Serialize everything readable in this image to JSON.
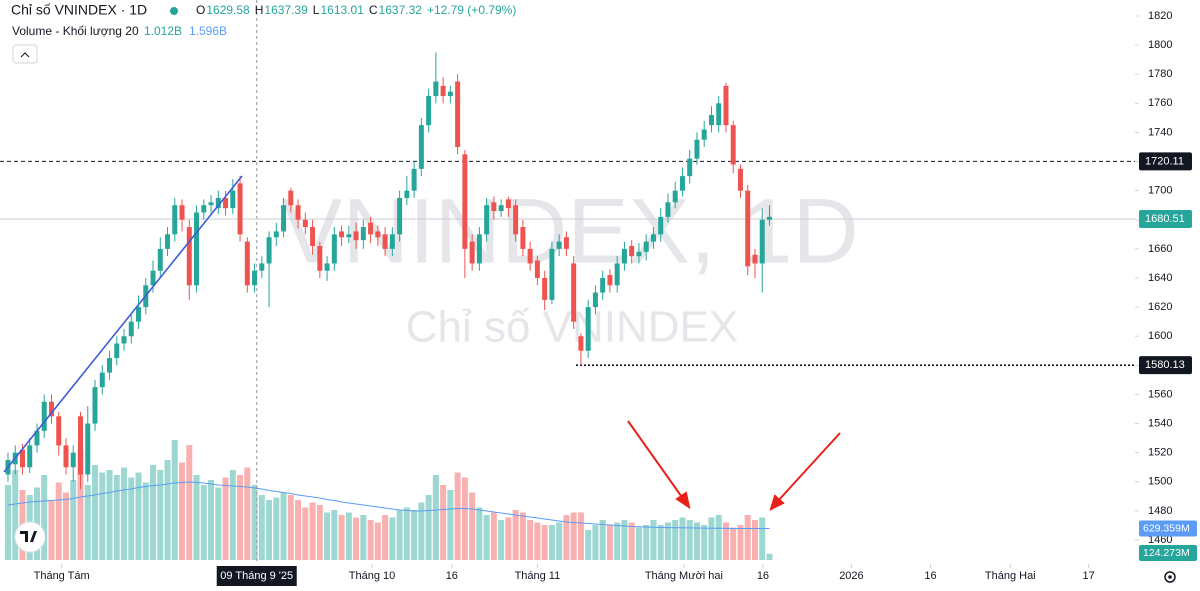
{
  "header": {
    "symbol": "Chỉ số VNINDEX · 1D",
    "ohlc": [
      {
        "label": "O",
        "value": 1629.58
      },
      {
        "label": "H",
        "value": 1637.39
      },
      {
        "label": "L",
        "value": 1613.01
      },
      {
        "label": "C",
        "value": 1637.32
      }
    ],
    "change": "+12.79 (+0.79%)",
    "volume_title": "Volume - Khối lượng 20",
    "volume_values": [
      "1.012B",
      "1.596B"
    ]
  },
  "watermark": [
    "VNINDEX, 1D",
    "Chỉ số VNINDEX"
  ],
  "chart_data": {
    "type": "candlestick",
    "up_color": "#26a69a",
    "down_color": "#ef5350",
    "open": [
      1505,
      1512,
      1522,
      1510,
      1525,
      1535,
      1555,
      1545,
      1525,
      1510,
      1545,
      1505,
      1540,
      1565,
      1575,
      1585,
      1595,
      1600,
      1610,
      1620,
      1635,
      1645,
      1660,
      1670,
      1690,
      1675,
      1635,
      1685,
      1690,
      1688,
      1695,
      1688,
      1705,
      1665,
      1635,
      1645,
      1650,
      1668,
      1672,
      1700,
      1690,
      1680,
      1675,
      1662,
      1645,
      1650,
      1672,
      1668,
      1672,
      1666,
      1678,
      1672,
      1670,
      1660,
      1670,
      1695,
      1700,
      1715,
      1745,
      1765,
      1772,
      1765,
      1775,
      1725,
      1665,
      1650,
      1670,
      1692,
      1686,
      1694,
      1690,
      1675,
      1660,
      1652,
      1640,
      1625,
      1660,
      1668,
      1650,
      1600,
      1590,
      1620,
      1630,
      1642,
      1635,
      1650,
      1662,
      1655,
      1658,
      1665,
      1670,
      1682,
      1692,
      1700,
      1710,
      1722,
      1735,
      1745,
      1745,
      1772,
      1745,
      1715,
      1700,
      1656,
      1650,
      1680
    ],
    "high": [
      1520,
      1525,
      1526,
      1530,
      1540,
      1560,
      1560,
      1548,
      1530,
      1525,
      1548,
      1552,
      1570,
      1580,
      1590,
      1600,
      1605,
      1615,
      1628,
      1640,
      1652,
      1668,
      1675,
      1695,
      1694,
      1680,
      1690,
      1694,
      1697,
      1700,
      1700,
      1708,
      1710,
      1668,
      1650,
      1655,
      1672,
      1678,
      1695,
      1702,
      1694,
      1685,
      1680,
      1665,
      1655,
      1675,
      1676,
      1676,
      1678,
      1680,
      1682,
      1676,
      1675,
      1675,
      1700,
      1710,
      1720,
      1750,
      1770,
      1795,
      1778,
      1772,
      1780,
      1728,
      1670,
      1675,
      1695,
      1696,
      1694,
      1696,
      1694,
      1680,
      1665,
      1655,
      1645,
      1665,
      1670,
      1672,
      1655,
      1602,
      1625,
      1635,
      1645,
      1646,
      1655,
      1665,
      1666,
      1664,
      1670,
      1675,
      1688,
      1698,
      1706,
      1716,
      1728,
      1740,
      1748,
      1758,
      1765,
      1774,
      1748,
      1718,
      1704,
      1660,
      1688,
      1690
    ],
    "low": [
      1500,
      1505,
      1505,
      1506,
      1520,
      1530,
      1540,
      1518,
      1505,
      1500,
      1495,
      1500,
      1535,
      1560,
      1570,
      1580,
      1590,
      1595,
      1605,
      1615,
      1630,
      1640,
      1655,
      1665,
      1672,
      1625,
      1630,
      1680,
      1685,
      1684,
      1683,
      1684,
      1665,
      1630,
      1630,
      1640,
      1620,
      1662,
      1668,
      1685,
      1674,
      1670,
      1656,
      1640,
      1638,
      1645,
      1662,
      1664,
      1660,
      1660,
      1664,
      1662,
      1655,
      1655,
      1665,
      1690,
      1695,
      1710,
      1740,
      1760,
      1760,
      1760,
      1725,
      1640,
      1645,
      1645,
      1665,
      1680,
      1682,
      1682,
      1665,
      1655,
      1645,
      1635,
      1618,
      1622,
      1655,
      1655,
      1605,
      1580,
      1585,
      1615,
      1625,
      1630,
      1630,
      1645,
      1650,
      1650,
      1652,
      1660,
      1665,
      1678,
      1688,
      1696,
      1705,
      1718,
      1730,
      1740,
      1740,
      1740,
      1712,
      1695,
      1642,
      1640,
      1630,
      1676
    ],
    "close": [
      1515,
      1520,
      1510,
      1525,
      1535,
      1555,
      1545,
      1525,
      1510,
      1520,
      1505,
      1540,
      1565,
      1575,
      1585,
      1595,
      1600,
      1610,
      1620,
      1635,
      1645,
      1660,
      1670,
      1690,
      1680,
      1635,
      1685,
      1690,
      1692,
      1695,
      1688,
      1700,
      1670,
      1635,
      1645,
      1650,
      1668,
      1672,
      1690,
      1690,
      1680,
      1675,
      1662,
      1645,
      1650,
      1670,
      1668,
      1670,
      1666,
      1675,
      1670,
      1668,
      1660,
      1670,
      1695,
      1700,
      1715,
      1745,
      1765,
      1775,
      1765,
      1768,
      1730,
      1660,
      1650,
      1670,
      1690,
      1686,
      1690,
      1688,
      1670,
      1660,
      1650,
      1640,
      1625,
      1660,
      1665,
      1660,
      1610,
      1590,
      1620,
      1630,
      1640,
      1635,
      1650,
      1660,
      1655,
      1658,
      1665,
      1670,
      1682,
      1692,
      1700,
      1710,
      1722,
      1735,
      1742,
      1752,
      1760,
      1745,
      1718,
      1700,
      1648,
      1650,
      1680,
      1682
    ],
    "volume": [
      1500,
      1800,
      1400,
      1300,
      1450,
      1700,
      1200,
      1550,
      1350,
      1600,
      2200,
      1500,
      1900,
      1750,
      1800,
      1700,
      1850,
      1650,
      1750,
      1550,
      1900,
      1800,
      2000,
      2400,
      1950,
      2300,
      1700,
      1500,
      1600,
      1450,
      1650,
      1800,
      1700,
      1850,
      1500,
      1300,
      1200,
      1250,
      1350,
      1300,
      1200,
      1050,
      1150,
      1100,
      950,
      1000,
      900,
      950,
      850,
      900,
      800,
      750,
      900,
      850,
      1000,
      1050,
      1000,
      1150,
      1300,
      1700,
      1500,
      1400,
      1750,
      1650,
      1350,
      1050,
      900,
      950,
      800,
      850,
      1000,
      950,
      800,
      750,
      700,
      700,
      750,
      900,
      950,
      950,
      600,
      700,
      800,
      700,
      750,
      800,
      750,
      650,
      700,
      800,
      700,
      750,
      800,
      850,
      800,
      750,
      700,
      850,
      900,
      750,
      650,
      700,
      900,
      800,
      850,
      124.273
    ],
    "volume_ma": [
      1100,
      1120,
      1140,
      1160,
      1170,
      1180,
      1190,
      1200,
      1210,
      1230,
      1260,
      1280,
      1300,
      1330,
      1350,
      1380,
      1400,
      1420,
      1450,
      1470,
      1490,
      1500,
      1520,
      1540,
      1550,
      1560,
      1550,
      1540,
      1520,
      1500,
      1490,
      1480,
      1470,
      1460,
      1440,
      1420,
      1390,
      1370,
      1350,
      1330,
      1300,
      1280,
      1260,
      1240,
      1210,
      1190,
      1160,
      1140,
      1120,
      1100,
      1080,
      1060,
      1040,
      1020,
      1000,
      990,
      980,
      980,
      990,
      1000,
      1010,
      1020,
      1030,
      1030,
      1020,
      1000,
      980,
      960,
      940,
      920,
      900,
      880,
      860,
      840,
      820,
      800,
      780,
      760,
      750,
      740,
      730,
      720,
      710,
      700,
      690,
      680,
      670,
      665,
      660,
      655,
      650,
      648,
      646,
      644,
      642,
      640,
      638,
      636,
      634,
      632,
      631,
      630,
      630,
      629.5,
      629.4,
      629.359
    ],
    "volume_ma_color": "#5b9cf6",
    "xlim": [
      -1.1,
      155.4
    ],
    "xticks": [
      {
        "value": 7.4,
        "label": "Tháng Tám"
      },
      {
        "value": 50.2,
        "label": "Tháng 10"
      },
      {
        "value": 61.2,
        "label": "16"
      },
      {
        "value": 73,
        "label": "Tháng 11"
      },
      {
        "value": 93.2,
        "label": "Tháng Mười hai"
      },
      {
        "value": 104.1,
        "label": "16"
      },
      {
        "value": 116.3,
        "label": "2026"
      },
      {
        "value": 127.2,
        "label": "16"
      },
      {
        "value": 138.2,
        "label": "Tháng Hai"
      },
      {
        "value": 149,
        "label": "17"
      }
    ],
    "crosshair": {
      "value": 34.3,
      "label": "09 Tháng 9 '25"
    },
    "ylim": [
      1460,
      1820
    ],
    "yticks": [
      1460,
      1480,
      1500,
      1520,
      1540,
      1560,
      1580,
      1600,
      1620,
      1640,
      1660,
      1680,
      1700,
      1720,
      1740,
      1760,
      1780,
      1800,
      1820
    ],
    "volume_lim": [
      0,
      2400
    ],
    "price_lines": [
      {
        "value": 1720.11,
        "style": "dashed",
        "color": "#131722"
      },
      {
        "value": 1680.51,
        "style": "solid",
        "color": "#26a69a"
      },
      {
        "value": 1580.13,
        "style": "dotted",
        "color": "#131722"
      }
    ],
    "volume_labels": [
      {
        "value": 629.359,
        "label": "629.359M",
        "color": "#5b9cf6"
      },
      {
        "value": 124.273,
        "label": "124.273M",
        "color": "#26a69a"
      }
    ]
  }
}
